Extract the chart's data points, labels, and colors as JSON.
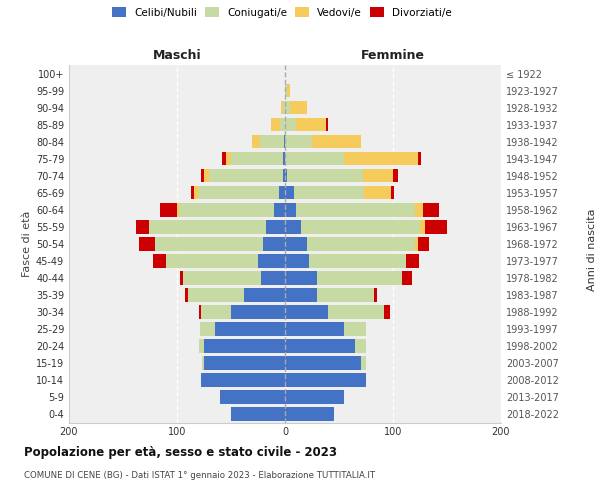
{
  "age_groups": [
    "0-4",
    "5-9",
    "10-14",
    "15-19",
    "20-24",
    "25-29",
    "30-34",
    "35-39",
    "40-44",
    "45-49",
    "50-54",
    "55-59",
    "60-64",
    "65-69",
    "70-74",
    "75-79",
    "80-84",
    "85-89",
    "90-94",
    "95-99",
    "100+"
  ],
  "birth_years": [
    "2018-2022",
    "2013-2017",
    "2008-2012",
    "2003-2007",
    "1998-2002",
    "1993-1997",
    "1988-1992",
    "1983-1987",
    "1978-1982",
    "1973-1977",
    "1968-1972",
    "1963-1967",
    "1958-1962",
    "1953-1957",
    "1948-1952",
    "1943-1947",
    "1938-1942",
    "1933-1937",
    "1928-1932",
    "1923-1927",
    "≤ 1922"
  ],
  "male_celibi": [
    50,
    60,
    78,
    75,
    75,
    65,
    50,
    38,
    22,
    25,
    20,
    18,
    10,
    6,
    2,
    2,
    1,
    0,
    0,
    0,
    0
  ],
  "male_coniugati": [
    0,
    0,
    0,
    2,
    5,
    14,
    28,
    52,
    72,
    85,
    100,
    108,
    88,
    75,
    68,
    48,
    22,
    5,
    2,
    0,
    0
  ],
  "male_vedovi": [
    0,
    0,
    0,
    0,
    0,
    0,
    0,
    0,
    0,
    0,
    0,
    0,
    2,
    3,
    5,
    5,
    8,
    8,
    2,
    0,
    0
  ],
  "male_divorziati": [
    0,
    0,
    0,
    0,
    0,
    0,
    2,
    3,
    3,
    12,
    15,
    12,
    16,
    3,
    3,
    3,
    0,
    0,
    0,
    0,
    0
  ],
  "female_nubili": [
    45,
    55,
    75,
    70,
    65,
    55,
    40,
    30,
    30,
    22,
    20,
    15,
    10,
    8,
    2,
    0,
    0,
    0,
    0,
    0,
    0
  ],
  "female_coniugate": [
    0,
    0,
    0,
    5,
    10,
    20,
    52,
    52,
    78,
    90,
    100,
    110,
    110,
    65,
    70,
    55,
    25,
    10,
    5,
    2,
    0
  ],
  "female_vedove": [
    0,
    0,
    0,
    0,
    0,
    0,
    0,
    0,
    0,
    0,
    3,
    5,
    8,
    25,
    28,
    68,
    45,
    28,
    15,
    3,
    0
  ],
  "female_divorziate": [
    0,
    0,
    0,
    0,
    0,
    0,
    5,
    3,
    10,
    12,
    10,
    20,
    15,
    3,
    5,
    3,
    0,
    2,
    0,
    0,
    0
  ],
  "colors": {
    "celibi": "#4472C4",
    "coniugati": "#c8daa4",
    "vedovi": "#F5CB5C",
    "divorziati": "#CC0000"
  },
  "title": "Popolazione per età, sesso e stato civile - 2023",
  "subtitle": "COMUNE DI CENE (BG) - Dati ISTAT 1° gennaio 2023 - Elaborazione TUTTITALIA.IT",
  "maschi_label": "Maschi",
  "femmine_label": "Femmine",
  "ylabel_left": "Fasce di età",
  "ylabel_right": "Anni di nascita",
  "xlim": 200,
  "bg_color": "#efefef",
  "legend_labels": [
    "Celibi/Nubili",
    "Coniugati/e",
    "Vedovi/e",
    "Divorziati/e"
  ]
}
